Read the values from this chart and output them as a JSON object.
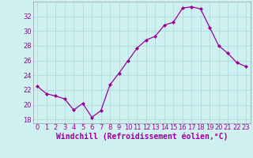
{
  "x": [
    0,
    1,
    2,
    3,
    4,
    5,
    6,
    7,
    8,
    9,
    10,
    11,
    12,
    13,
    14,
    15,
    16,
    17,
    18,
    19,
    20,
    21,
    22,
    23
  ],
  "y": [
    22.5,
    21.5,
    21.2,
    20.8,
    19.3,
    20.2,
    18.3,
    19.2,
    22.7,
    24.3,
    26.0,
    27.7,
    28.8,
    29.3,
    30.8,
    31.2,
    33.1,
    33.3,
    33.0,
    30.5,
    28.0,
    27.0,
    25.7,
    25.2
  ],
  "line_color": "#9b009b",
  "marker": "D",
  "marker_size": 2,
  "background_color": "#cff0f0",
  "grid_color": "#aadddd",
  "xlabel": "Windchill (Refroidissement éolien,°C)",
  "xlabel_color": "#9b009b",
  "ylim": [
    17.5,
    34.0
  ],
  "xlim": [
    -0.5,
    23.5
  ],
  "yticks": [
    18,
    20,
    22,
    24,
    26,
    28,
    30,
    32
  ],
  "xtick_labels": [
    "0",
    "1",
    "2",
    "3",
    "4",
    "5",
    "6",
    "7",
    "8",
    "9",
    "10",
    "11",
    "12",
    "13",
    "14",
    "15",
    "16",
    "17",
    "18",
    "19",
    "20",
    "21",
    "22",
    "23"
  ],
  "tick_color": "#9b009b",
  "tick_fontsize": 6,
  "xlabel_fontsize": 7,
  "spine_color": "#9b9b9b"
}
